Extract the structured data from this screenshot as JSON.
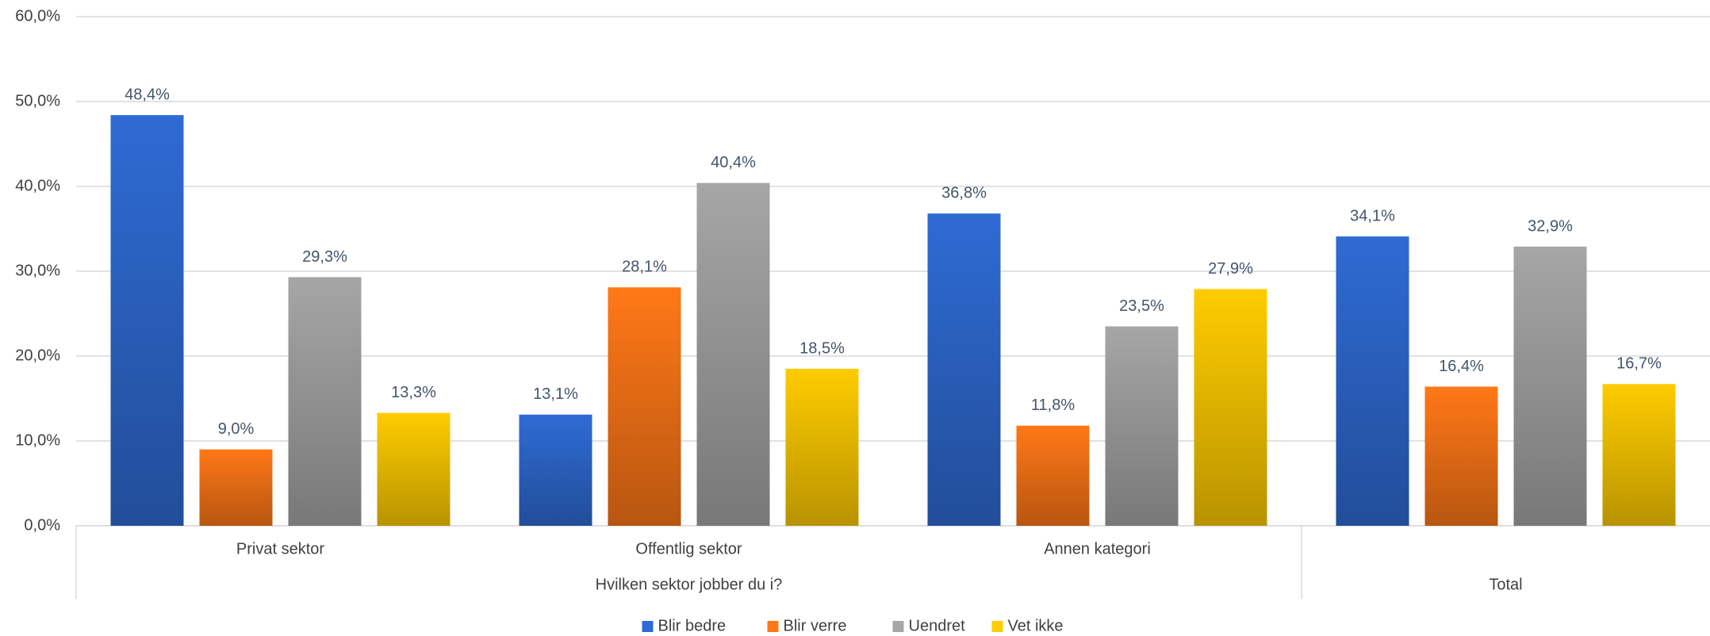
{
  "chart_data": {
    "type": "bar",
    "groups": [
      {
        "name": "Hvilken sektor jobber du i?",
        "categories": [
          "Privat sektor",
          "Offentlig sektor",
          "Annen kategori"
        ]
      },
      {
        "name": "Total",
        "categories": [
          null
        ]
      }
    ],
    "series": [
      {
        "name": "Blir bedre",
        "color": "#2f6bd4",
        "values": [
          48.4,
          13.1,
          36.8,
          34.1
        ],
        "value_labels": [
          "48,4%",
          "13,1%",
          "36,8%",
          "34,1%"
        ]
      },
      {
        "name": "Blir verre",
        "color": "#ff7817",
        "values": [
          9.0,
          28.1,
          11.8,
          16.4
        ],
        "value_labels": [
          "9,0%",
          "28,1%",
          "11,8%",
          "16,4%"
        ]
      },
      {
        "name": "Uendret",
        "color": "#a6a6a6",
        "values": [
          29.3,
          40.4,
          23.5,
          32.9
        ],
        "value_labels": [
          "29,3%",
          "40,4%",
          "23,5%",
          "32,9%"
        ]
      },
      {
        "name": "Vet ikke",
        "color": "#ffcc00",
        "values": [
          13.3,
          18.5,
          27.9,
          16.7
        ],
        "value_labels": [
          "13,3%",
          "18,5%",
          "27,9%",
          "16,7%"
        ]
      }
    ],
    "ylim": [
      0,
      60
    ],
    "yticks": [
      {
        "value": 0,
        "label": "0,0%"
      },
      {
        "value": 10,
        "label": "10,0%"
      },
      {
        "value": 20,
        "label": "20,0%"
      },
      {
        "value": 30,
        "label": "30,0%"
      },
      {
        "value": 40,
        "label": "40,0%"
      },
      {
        "value": 50,
        "label": "50,0%"
      },
      {
        "value": 60,
        "label": "60,0%"
      }
    ],
    "grid": true,
    "legend": "bottom"
  }
}
